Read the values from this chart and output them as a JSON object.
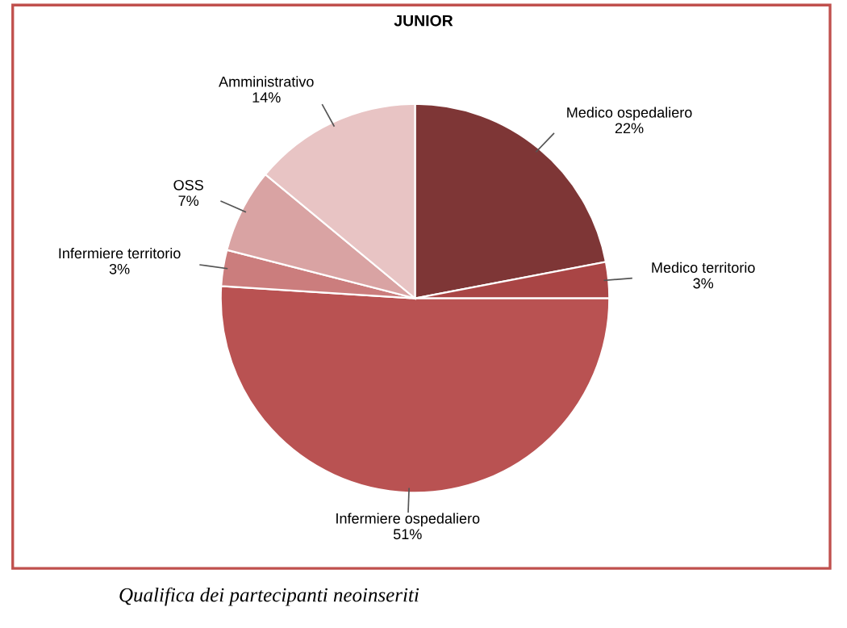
{
  "chart_data": {
    "type": "pie",
    "title": "JUNIOR",
    "categories": [
      "Medico ospedaliero",
      "Medico territorio",
      "Infermiere ospedaliero",
      "Infermiere territorio",
      "OSS",
      "Amministrativo"
    ],
    "values": [
      22,
      3,
      51,
      3,
      7,
      14
    ],
    "value_labels": [
      "22%",
      "3%",
      "51%",
      "3%",
      "7%",
      "14%"
    ],
    "colors": [
      "#7e3636",
      "#a94545",
      "#b95252",
      "#cb7d7d",
      "#d9a3a3",
      "#e8c4c4"
    ],
    "legend": false,
    "annotations": [
      "Qualifica dei partecipanti neoinseriti"
    ]
  }
}
